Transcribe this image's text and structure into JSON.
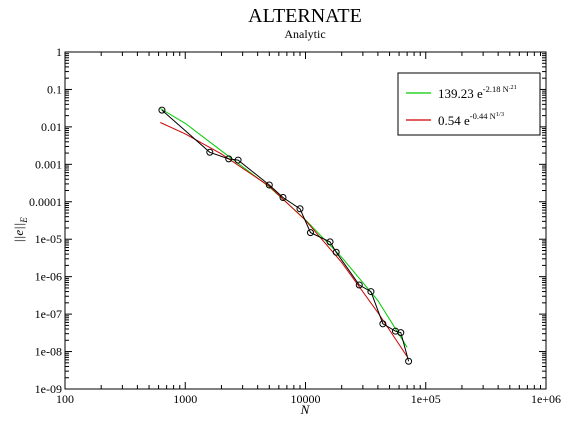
{
  "chart_data": {
    "type": "scatter",
    "title": "ALTERNATE",
    "subtitle": "Analytic",
    "xlabel": "N",
    "ylabel": "||e||_E",
    "ylabel_main": "||e||",
    "ylabel_sub": "E",
    "x_scale": "log",
    "y_scale": "log",
    "xlim": [
      100,
      1000000
    ],
    "ylim": [
      1e-09,
      1
    ],
    "x_ticks": [
      "100",
      "1000",
      "10000",
      "1e+05",
      "1e+06"
    ],
    "x_tick_values": [
      100,
      1000,
      10000,
      100000,
      1000000
    ],
    "y_ticks": [
      "1",
      "0.1",
      "0.01",
      "0.001",
      "0.0001",
      "1e-05",
      "1e-06",
      "1e-07",
      "1e-08",
      "1e-09"
    ],
    "y_tick_values": [
      1,
      0.1,
      0.01,
      0.001,
      0.0001,
      1e-05,
      1e-06,
      1e-07,
      1e-08,
      1e-09
    ],
    "grid": false,
    "legend_position": "top-right",
    "series": [
      {
        "kind": "data",
        "style": "black line with open circle markers",
        "color": "#000000",
        "x": [
          640,
          1600,
          2300,
          2750,
          5000,
          6500,
          9000,
          11000,
          16000,
          18000,
          28000,
          35000,
          44000,
          56000,
          62000,
          72000
        ],
        "y": [
          0.028,
          0.0021,
          0.0014,
          0.0013,
          0.00028,
          0.00013,
          6.5e-05,
          1.5e-05,
          8.5e-06,
          4.5e-06,
          6e-07,
          4e-07,
          5.5e-08,
          3.5e-08,
          3.2e-08,
          5.5e-09
        ]
      },
      {
        "kind": "fit",
        "name": "139.23 e^{-2.18 N^{.21}}",
        "color": "#00cc00",
        "x": [
          620,
          1000,
          2000,
          5000,
          10000,
          20000,
          40000,
          70000
        ],
        "y": [
          0.031,
          0.0124,
          0.0023,
          0.00025,
          3.3e-05,
          3.3e-06,
          2.3e-07,
          1.3e-08
        ]
      },
      {
        "kind": "fit",
        "name": "0.54 e^{-0.44 N^{1/3}}",
        "color": "#cc0000",
        "x": [
          620,
          1000,
          2000,
          5000,
          10000,
          20000,
          40000,
          70000
        ],
        "y": [
          0.0131,
          0.0065,
          0.0019,
          0.00026,
          3.2e-05,
          2.4e-06,
          1.1e-07,
          7.4e-09
        ]
      }
    ],
    "legend": [
      {
        "coef": "139.23",
        "base": "e",
        "exp_prefix": "-2.18 N",
        "exp_power": ".21",
        "color": "#00cc00"
      },
      {
        "coef": "0.54",
        "base": "e",
        "exp_prefix": "-0.44 N",
        "exp_power": "1/3",
        "color": "#cc0000"
      }
    ]
  }
}
